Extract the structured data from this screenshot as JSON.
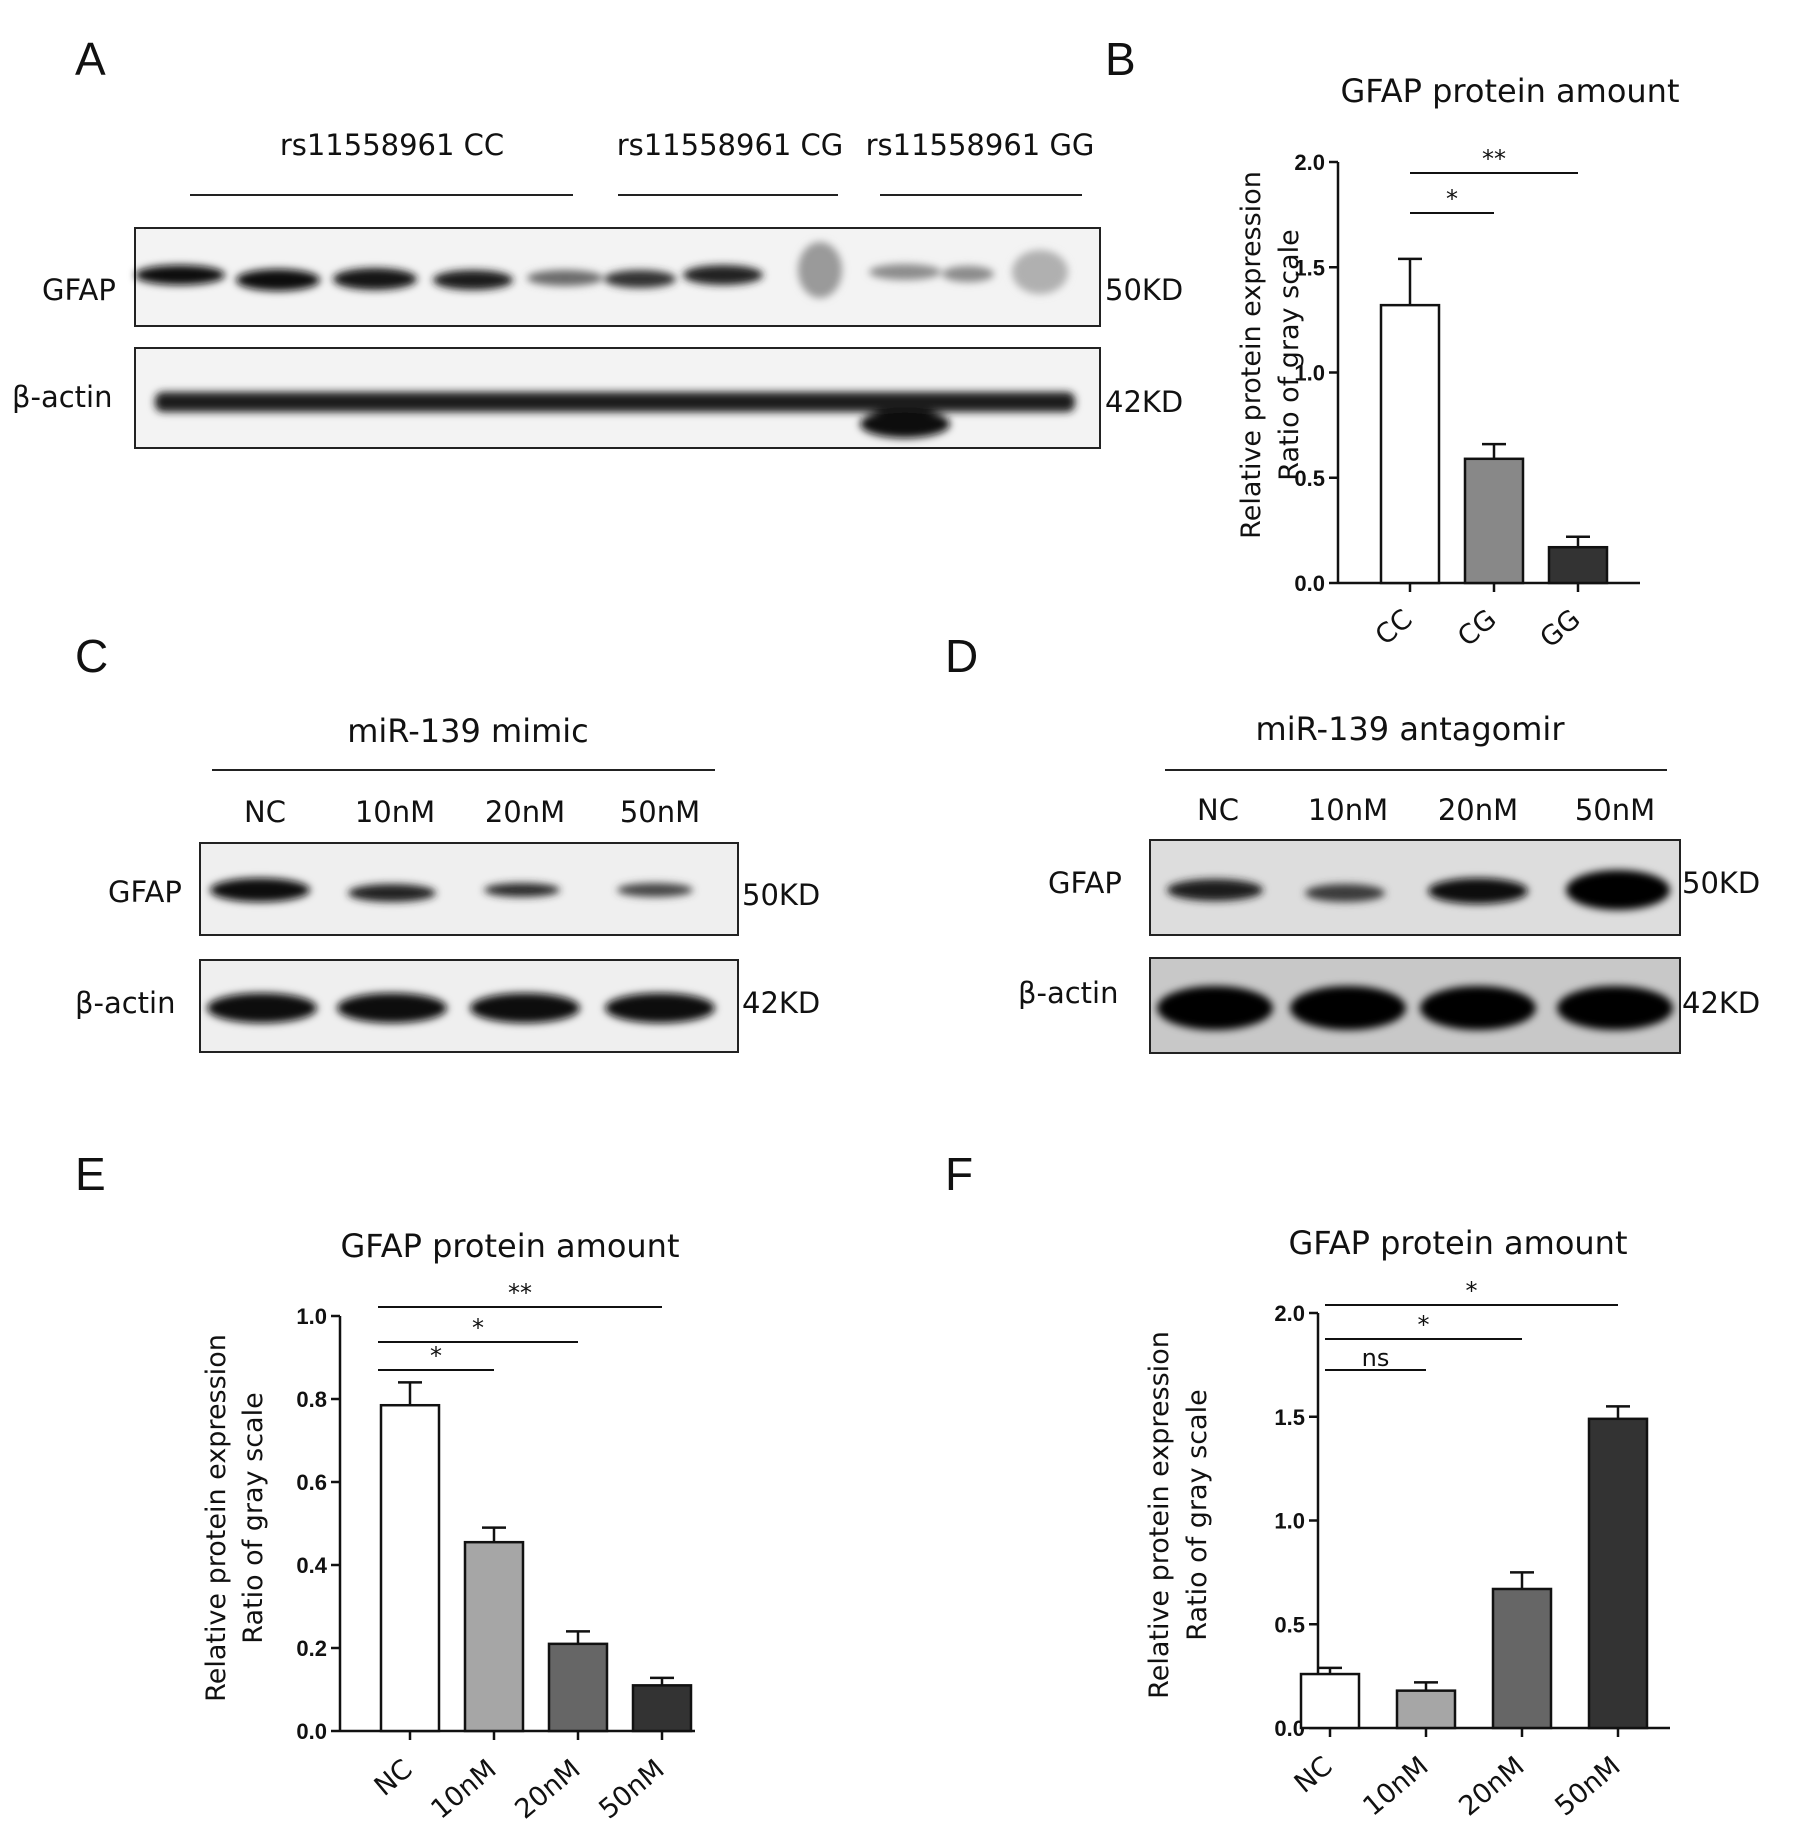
{
  "panels": {
    "A": "A",
    "B": "B",
    "C": "C",
    "D": "D",
    "E": "E",
    "F": "F"
  },
  "blot_a": {
    "groups": [
      "rs11558961 CC",
      "rs11558961 CG",
      "rs11558961 GG"
    ],
    "rows": [
      {
        "name": "GFAP",
        "size": "50KD"
      },
      {
        "name": "β-actin",
        "size": "42KD"
      }
    ]
  },
  "blot_c": {
    "title": "miR-139 mimic",
    "lanes": [
      "NC",
      "10nM",
      "20nM",
      "50nM"
    ],
    "rows": [
      {
        "name": "GFAP",
        "size": "50KD"
      },
      {
        "name": "β-actin",
        "size": "42KD"
      }
    ]
  },
  "blot_d": {
    "title": "miR-139 antagomir",
    "lanes": [
      "NC",
      "10nM",
      "20nM",
      "50nM"
    ],
    "rows": [
      {
        "name": "GFAP",
        "size": "50KD"
      },
      {
        "name": "β-actin",
        "size": "42KD"
      }
    ]
  },
  "chart_data": [
    {
      "panel": "B",
      "type": "bar",
      "title": "GFAP protein amount",
      "ylabel_lines": [
        "Relative protein expression",
        "Ratio of gray scale"
      ],
      "categories": [
        "CC",
        "CG",
        "GG"
      ],
      "values": [
        1.32,
        0.59,
        0.17
      ],
      "errors": [
        0.22,
        0.07,
        0.05
      ],
      "bar_colors": [
        "#ffffff",
        "#888888",
        "#333333"
      ],
      "ylim": [
        0,
        2.0
      ],
      "yticks": [
        "0.0",
        "0.5",
        "1.0",
        "1.5",
        "2.0"
      ],
      "significance": [
        {
          "from": 0,
          "to": 1,
          "label": "*"
        },
        {
          "from": 0,
          "to": 2,
          "label": "**"
        }
      ]
    },
    {
      "panel": "E",
      "type": "bar",
      "title": "GFAP protein amount",
      "ylabel_lines": [
        "Relative protein expression",
        "Ratio of gray scale"
      ],
      "categories": [
        "NC",
        "10nM",
        "20nM",
        "50nM"
      ],
      "values": [
        0.785,
        0.455,
        0.21,
        0.11
      ],
      "errors": [
        0.055,
        0.035,
        0.03,
        0.018
      ],
      "bar_colors": [
        "#ffffff",
        "#a6a6a6",
        "#666666",
        "#333333"
      ],
      "ylim": [
        0,
        1.0
      ],
      "yticks": [
        "0.0",
        "0.2",
        "0.4",
        "0.6",
        "0.8",
        "1.0"
      ],
      "significance": [
        {
          "from": 0,
          "to": 1,
          "label": "*"
        },
        {
          "from": 0,
          "to": 2,
          "label": "*"
        },
        {
          "from": 0,
          "to": 3,
          "label": "**"
        }
      ]
    },
    {
      "panel": "F",
      "type": "bar",
      "title": "GFAP protein amount",
      "ylabel_lines": [
        "Relative protein expression",
        "Ratio of gray scale"
      ],
      "categories": [
        "NC",
        "10nM",
        "20nM",
        "50nM"
      ],
      "values": [
        0.26,
        0.18,
        0.67,
        1.49
      ],
      "errors": [
        0.03,
        0.04,
        0.08,
        0.06
      ],
      "bar_colors": [
        "#ffffff",
        "#a6a6a6",
        "#666666",
        "#333333"
      ],
      "ylim": [
        0,
        2.0
      ],
      "yticks": [
        "0.0",
        "0.5",
        "1.0",
        "1.5",
        "2.0"
      ],
      "significance": [
        {
          "from": 0,
          "to": 1,
          "label": "ns"
        },
        {
          "from": 0,
          "to": 2,
          "label": "*"
        },
        {
          "from": 0,
          "to": 3,
          "label": "*"
        }
      ]
    }
  ]
}
